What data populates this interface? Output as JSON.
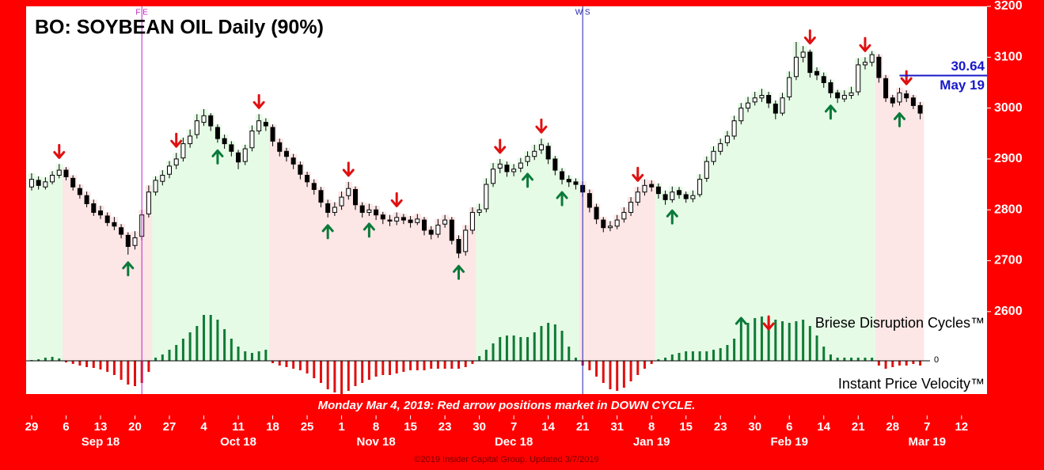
{
  "chart_data": {
    "type": "candlestick",
    "title": "BO: SOYBEAN OIL Daily (90%)",
    "cycle_label": "Briese Disruption Cycles™",
    "velocity_label": "Instant Price Velocity™",
    "zero_label": "0",
    "banner": "Monday Mar 4, 2019: Red arrow positions market in DOWN CYCLE.",
    "footer": "©2019 Insider Capital Group. Updated 3/7/2019",
    "ylim": [
      2438,
      3200
    ],
    "yticks": [
      2600,
      2700,
      2800,
      2900,
      3000,
      3100,
      3200
    ],
    "cycle_ylim": [
      -42,
      448
    ],
    "xlim": [
      -0.8,
      138.7
    ],
    "xticks": [
      {
        "value": 0,
        "label": "29"
      },
      {
        "value": 5,
        "label": "6"
      },
      {
        "value": 10,
        "label": "13"
      },
      {
        "value": 15,
        "label": "20"
      },
      {
        "value": 20,
        "label": "27"
      },
      {
        "value": 25,
        "label": "4"
      },
      {
        "value": 30,
        "label": "11"
      },
      {
        "value": 35,
        "label": "18"
      },
      {
        "value": 40,
        "label": "25"
      },
      {
        "value": 45,
        "label": "1"
      },
      {
        "value": 50,
        "label": "8"
      },
      {
        "value": 55,
        "label": "15"
      },
      {
        "value": 60,
        "label": "23"
      },
      {
        "value": 65,
        "label": "30"
      },
      {
        "value": 70,
        "label": "7"
      },
      {
        "value": 75,
        "label": "14"
      },
      {
        "value": 80,
        "label": "21"
      },
      {
        "value": 85,
        "label": "31"
      },
      {
        "value": 90,
        "label": "8"
      },
      {
        "value": 95,
        "label": "15"
      },
      {
        "value": 100,
        "label": "23"
      },
      {
        "value": 105,
        "label": "30"
      },
      {
        "value": 110,
        "label": "6"
      },
      {
        "value": 115,
        "label": "14"
      },
      {
        "value": 120,
        "label": "21"
      },
      {
        "value": 125,
        "label": "28"
      },
      {
        "value": 130,
        "label": "7"
      },
      {
        "value": 135,
        "label": "12"
      }
    ],
    "month_labels": [
      {
        "value": 10,
        "label": "Sep 18"
      },
      {
        "value": 30,
        "label": "Oct 18"
      },
      {
        "value": 50,
        "label": "Nov 18"
      },
      {
        "value": 70,
        "label": "Dec 18"
      },
      {
        "value": 90,
        "label": "Jan 19"
      },
      {
        "value": 110,
        "label": "Feb 19"
      },
      {
        "value": 130,
        "label": "Mar 19"
      }
    ],
    "events": [
      {
        "x": 16,
        "label": "F E",
        "color": "#c020c0"
      },
      {
        "x": 80,
        "label": "W S",
        "color": "#2020b0"
      }
    ],
    "forecast": {
      "value": 3064,
      "label": "30.64",
      "date": "May 19",
      "from": 126,
      "color": "#1818c8"
    },
    "candles": [
      [
        2845,
        2872,
        2838,
        2860
      ],
      [
        2858,
        2866,
        2840,
        2848
      ],
      [
        2845,
        2864,
        2840,
        2855
      ],
      [
        2855,
        2876,
        2850,
        2868
      ],
      [
        2868,
        2890,
        2862,
        2878
      ],
      [
        2878,
        2884,
        2858,
        2865
      ],
      [
        2862,
        2868,
        2838,
        2845
      ],
      [
        2842,
        2850,
        2822,
        2830
      ],
      [
        2828,
        2836,
        2805,
        2812
      ],
      [
        2812,
        2820,
        2788,
        2795
      ],
      [
        2798,
        2808,
        2782,
        2790
      ],
      [
        2788,
        2795,
        2768,
        2775
      ],
      [
        2775,
        2786,
        2760,
        2768
      ],
      [
        2765,
        2772,
        2744,
        2752
      ],
      [
        2750,
        2756,
        2712,
        2728
      ],
      [
        2730,
        2758,
        2722,
        2745
      ],
      [
        2748,
        2800,
        2740,
        2790
      ],
      [
        2792,
        2848,
        2785,
        2835
      ],
      [
        2835,
        2866,
        2828,
        2858
      ],
      [
        2856,
        2878,
        2848,
        2868
      ],
      [
        2870,
        2896,
        2862,
        2886
      ],
      [
        2888,
        2912,
        2880,
        2900
      ],
      [
        2902,
        2942,
        2895,
        2930
      ],
      [
        2930,
        2958,
        2922,
        2945
      ],
      [
        2948,
        2988,
        2940,
        2975
      ],
      [
        2972,
        2998,
        2965,
        2985
      ],
      [
        2985,
        2990,
        2955,
        2965
      ],
      [
        2962,
        2968,
        2932,
        2940
      ],
      [
        2940,
        2948,
        2920,
        2930
      ],
      [
        2928,
        2935,
        2905,
        2915
      ],
      [
        2912,
        2918,
        2880,
        2894
      ],
      [
        2895,
        2928,
        2888,
        2920
      ],
      [
        2922,
        2966,
        2915,
        2955
      ],
      [
        2955,
        2988,
        2948,
        2975
      ],
      [
        2972,
        2980,
        2955,
        2965
      ],
      [
        2962,
        2968,
        2925,
        2935
      ],
      [
        2932,
        2940,
        2905,
        2915
      ],
      [
        2915,
        2922,
        2895,
        2905
      ],
      [
        2902,
        2910,
        2880,
        2890
      ],
      [
        2888,
        2895,
        2860,
        2870
      ],
      [
        2868,
        2875,
        2845,
        2855
      ],
      [
        2852,
        2860,
        2830,
        2840
      ],
      [
        2838,
        2845,
        2805,
        2815
      ],
      [
        2812,
        2820,
        2785,
        2795
      ],
      [
        2795,
        2815,
        2788,
        2805
      ],
      [
        2808,
        2836,
        2800,
        2825
      ],
      [
        2828,
        2855,
        2820,
        2842
      ],
      [
        2840,
        2846,
        2800,
        2810
      ],
      [
        2808,
        2815,
        2785,
        2795
      ],
      [
        2795,
        2812,
        2788,
        2800
      ],
      [
        2800,
        2808,
        2780,
        2790
      ],
      [
        2790,
        2796,
        2772,
        2782
      ],
      [
        2780,
        2790,
        2768,
        2778
      ],
      [
        2778,
        2795,
        2770,
        2785
      ],
      [
        2785,
        2792,
        2772,
        2780
      ],
      [
        2780,
        2788,
        2765,
        2775
      ],
      [
        2775,
        2792,
        2770,
        2782
      ],
      [
        2780,
        2786,
        2750,
        2760
      ],
      [
        2760,
        2768,
        2742,
        2752
      ],
      [
        2752,
        2782,
        2745,
        2770
      ],
      [
        2772,
        2790,
        2765,
        2780
      ],
      [
        2780,
        2786,
        2732,
        2740
      ],
      [
        2742,
        2750,
        2705,
        2715
      ],
      [
        2718,
        2770,
        2710,
        2760
      ],
      [
        2760,
        2805,
        2752,
        2795
      ],
      [
        2795,
        2812,
        2788,
        2800
      ],
      [
        2802,
        2862,
        2795,
        2850
      ],
      [
        2852,
        2892,
        2845,
        2880
      ],
      [
        2882,
        2900,
        2872,
        2890
      ],
      [
        2888,
        2895,
        2865,
        2875
      ],
      [
        2875,
        2890,
        2866,
        2880
      ],
      [
        2882,
        2902,
        2874,
        2892
      ],
      [
        2895,
        2915,
        2886,
        2905
      ],
      [
        2905,
        2928,
        2898,
        2915
      ],
      [
        2918,
        2940,
        2910,
        2928
      ],
      [
        2925,
        2932,
        2890,
        2900
      ],
      [
        2900,
        2906,
        2868,
        2878
      ],
      [
        2875,
        2882,
        2850,
        2860
      ],
      [
        2860,
        2868,
        2845,
        2855
      ],
      [
        2855,
        2862,
        2840,
        2850
      ],
      [
        2848,
        2856,
        2825,
        2835
      ],
      [
        2832,
        2840,
        2795,
        2805
      ],
      [
        2805,
        2812,
        2772,
        2782
      ],
      [
        2780,
        2786,
        2756,
        2765
      ],
      [
        2765,
        2778,
        2758,
        2768
      ],
      [
        2768,
        2790,
        2762,
        2780
      ],
      [
        2782,
        2805,
        2775,
        2795
      ],
      [
        2795,
        2825,
        2788,
        2815
      ],
      [
        2815,
        2845,
        2808,
        2835
      ],
      [
        2835,
        2860,
        2828,
        2848
      ],
      [
        2850,
        2858,
        2836,
        2845
      ],
      [
        2845,
        2852,
        2822,
        2832
      ],
      [
        2830,
        2838,
        2810,
        2820
      ],
      [
        2820,
        2846,
        2814,
        2835
      ],
      [
        2838,
        2845,
        2822,
        2830
      ],
      [
        2830,
        2836,
        2814,
        2822
      ],
      [
        2822,
        2838,
        2815,
        2828
      ],
      [
        2830,
        2870,
        2825,
        2860
      ],
      [
        2862,
        2905,
        2855,
        2895
      ],
      [
        2895,
        2925,
        2888,
        2915
      ],
      [
        2915,
        2940,
        2908,
        2930
      ],
      [
        2932,
        2955,
        2925,
        2945
      ],
      [
        2945,
        2985,
        2938,
        2975
      ],
      [
        2975,
        3010,
        2968,
        3000
      ],
      [
        3000,
        3022,
        2992,
        3010
      ],
      [
        3012,
        3032,
        3005,
        3020
      ],
      [
        3020,
        3038,
        3012,
        3025
      ],
      [
        3025,
        3032,
        3000,
        3010
      ],
      [
        3008,
        3015,
        2978,
        2990
      ],
      [
        2990,
        3030,
        2985,
        3020
      ],
      [
        3022,
        3072,
        3015,
        3060
      ],
      [
        3062,
        3130,
        3055,
        3100
      ],
      [
        3100,
        3122,
        3090,
        3110
      ],
      [
        3110,
        3115,
        3060,
        3070
      ],
      [
        3072,
        3080,
        3055,
        3065
      ],
      [
        3062,
        3070,
        3040,
        3050
      ],
      [
        3050,
        3056,
        3020,
        3030
      ],
      [
        3030,
        3036,
        3010,
        3020
      ],
      [
        3018,
        3035,
        3012,
        3025
      ],
      [
        3025,
        3042,
        3018,
        3030
      ],
      [
        3032,
        3098,
        3025,
        3085
      ],
      [
        3085,
        3100,
        3076,
        3090
      ],
      [
        3090,
        3112,
        3082,
        3105
      ],
      [
        3100,
        3106,
        3050,
        3060
      ],
      [
        3058,
        3065,
        3012,
        3020
      ],
      [
        3020,
        3026,
        3002,
        3010
      ],
      [
        3012,
        3040,
        3005,
        3030
      ],
      [
        3028,
        3035,
        3012,
        3020
      ],
      [
        3020,
        3026,
        2998,
        3005
      ],
      [
        3005,
        3012,
        2978,
        2990
      ]
    ],
    "cycle": [
      1,
      2,
      4,
      5,
      3,
      -2,
      -4,
      -6,
      -8,
      -9,
      -11,
      -14,
      -18,
      -24,
      -30,
      -32,
      -28,
      -14,
      4,
      8,
      14,
      20,
      28,
      36,
      44,
      58,
      58,
      52,
      40,
      28,
      18,
      12,
      10,
      12,
      14,
      -3,
      -6,
      -8,
      -10,
      -12,
      -16,
      -22,
      -28,
      -36,
      -40,
      -42,
      -38,
      -32,
      -28,
      -24,
      -20,
      -18,
      -18,
      -16,
      -14,
      -12,
      -12,
      -12,
      -10,
      -10,
      -10,
      -10,
      -10,
      -8,
      -4,
      6,
      14,
      22,
      30,
      32,
      32,
      30,
      30,
      36,
      44,
      48,
      46,
      38,
      18,
      4,
      -6,
      -12,
      -20,
      -28,
      -36,
      -38,
      -34,
      -26,
      -18,
      -10,
      -4,
      2,
      4,
      8,
      10,
      12,
      12,
      12,
      12,
      14,
      16,
      20,
      28,
      38,
      48,
      54,
      56,
      54,
      52,
      50,
      48,
      50,
      52,
      44,
      32,
      18,
      8,
      4,
      4,
      4,
      4,
      4,
      4,
      -6,
      -10,
      -8,
      -6,
      -6,
      -4,
      -6
    ],
    "down_arrows": [
      4,
      21,
      33,
      46,
      53,
      68,
      74,
      88,
      113,
      121,
      127
    ],
    "up_arrows": [
      14,
      27,
      43,
      49,
      62,
      72,
      77,
      93,
      116,
      126
    ],
    "cycle_arrows": {
      "up": [
        103
      ],
      "down": [
        107
      ]
    },
    "colors": {
      "up_cycle": "#e6fbe6",
      "down_cycle": "#fde6e6",
      "cycle_up_bar": "#107a36",
      "cycle_down_bar": "#e01010",
      "down_arrow": "#e01010",
      "up_arrow": "#0a7a3a"
    }
  }
}
